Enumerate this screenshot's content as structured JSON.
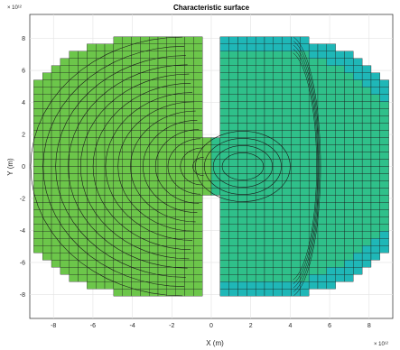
{
  "chart_data": {
    "type": "surface",
    "title": "Characteristic surface",
    "xlabel": "X (m)",
    "ylabel": "Y (m)",
    "x_multiplier": "× 10¹²",
    "y_multiplier": "× 10¹²",
    "xlim": [
      -9.2,
      9.2
    ],
    "ylim": [
      -9.5,
      9.5
    ],
    "xticks": [
      -8,
      -6,
      -4,
      -2,
      0,
      2,
      4,
      6,
      8
    ],
    "yticks": [
      -8,
      -6,
      -4,
      -2,
      0,
      2,
      4,
      6,
      8
    ],
    "xtick_labels": [
      "-8",
      "-6",
      "-4",
      "-2",
      "0",
      "2",
      "4",
      "6",
      "8"
    ],
    "ytick_labels": [
      "-8",
      "-6",
      "-4",
      "-2",
      "0",
      "2",
      "4",
      "6",
      "8"
    ],
    "grid": true,
    "lobes": [
      {
        "name": "",
        "center": [
          -2.7,
          0
        ],
        "radius": 8.2,
        "color": "#6cc64a"
      },
      {
        "name": "",
        "center": [
          2.7,
          0
        ],
        "radius": 8.2,
        "color": "#2fc08a"
      }
    ],
    "edge_color": "#1fb7b7",
    "cell_size": 0.45
  }
}
